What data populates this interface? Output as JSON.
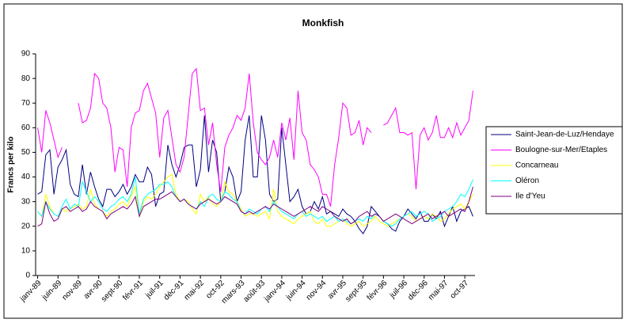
{
  "chart_data": {
    "type": "line",
    "title": "Monkfish",
    "y_label": "Francs per kilo",
    "categories": [
      "janv-89",
      null,
      null,
      null,
      null,
      "juin-89",
      null,
      null,
      null,
      null,
      "nov-89",
      null,
      null,
      null,
      null,
      "avr-90",
      null,
      null,
      null,
      null,
      "sept-90",
      null,
      null,
      null,
      null,
      "févr-91",
      null,
      null,
      null,
      null,
      "juil-91",
      null,
      null,
      null,
      null,
      "déc-91",
      null,
      null,
      null,
      null,
      "mai-92",
      null,
      null,
      null,
      null,
      "oct-92",
      null,
      null,
      null,
      null,
      "mars-93",
      null,
      null,
      null,
      null,
      "août-93",
      null,
      null,
      null,
      null,
      "janv-94",
      null,
      null,
      null,
      null,
      "juin-94",
      null,
      null,
      null,
      null,
      "nov-94",
      null,
      null,
      null,
      null,
      "avr-95",
      null,
      null,
      null,
      null,
      "sept-95",
      null,
      null,
      null,
      null,
      "févr-96",
      null,
      null,
      null,
      null,
      "juil-96",
      null,
      null,
      null,
      null,
      "déc-96",
      null,
      null,
      null,
      null,
      "mai-97",
      null,
      null,
      null,
      null,
      "oct-97",
      null,
      null
    ],
    "series": [
      {
        "name": "Saint-Jean-de-Luz/Hendaye",
        "color": "#000080",
        "values": [
          33,
          34,
          49,
          51,
          33,
          44,
          47,
          51,
          37,
          33,
          32,
          45,
          33,
          42,
          36,
          31,
          28,
          35,
          35,
          32,
          34,
          37,
          33,
          36,
          41,
          38,
          38,
          44,
          41,
          28,
          33,
          34,
          53,
          45,
          40,
          45,
          52,
          53,
          53,
          36,
          43,
          65,
          42,
          55,
          50,
          30,
          34,
          44,
          40,
          30,
          34,
          55,
          65,
          40,
          40,
          65,
          55,
          33,
          30,
          31,
          60,
          45,
          30,
          32,
          35,
          28,
          25,
          26,
          30,
          27,
          32,
          25,
          26,
          25,
          24,
          27,
          25,
          24,
          22,
          19,
          17,
          20,
          28,
          26,
          24,
          22,
          21,
          19,
          18,
          22,
          24,
          27,
          25,
          23,
          26,
          22,
          22,
          25,
          23,
          26,
          20,
          24,
          28,
          22,
          26,
          27,
          28,
          24
        ]
      },
      {
        "name": "Boulogne-sur-Mer/Etaples",
        "color": "#ff00ff",
        "values": [
          60,
          50,
          67,
          62,
          55,
          48,
          52,
          null,
          null,
          null,
          70,
          62,
          63,
          68,
          82,
          80,
          70,
          68,
          60,
          42,
          52,
          51,
          36,
          60,
          66,
          67,
          75,
          78,
          72,
          66,
          48,
          64,
          67,
          56,
          45,
          42,
          48,
          65,
          82,
          84,
          67,
          68,
          53,
          62,
          45,
          34,
          52,
          57,
          60,
          65,
          63,
          68,
          82,
          62,
          50,
          47,
          45,
          48,
          55,
          48,
          62,
          55,
          64,
          47,
          75,
          58,
          55,
          45,
          43,
          40,
          33,
          33,
          28,
          45,
          56,
          70,
          68,
          57,
          58,
          63,
          53,
          60,
          58,
          null,
          null,
          61,
          62,
          65,
          68,
          58,
          58,
          57,
          58,
          35,
          57,
          60,
          55,
          58,
          65,
          56,
          56,
          60,
          56,
          62,
          57,
          60,
          63,
          75
        ]
      },
      {
        "name": "Concarneau",
        "color": "#ffff00",
        "values": [
          26,
          24,
          33,
          28,
          25,
          24,
          27,
          26,
          27,
          28,
          29,
          27,
          28,
          35,
          29,
          27,
          26,
          24,
          26,
          27,
          29,
          30,
          28,
          32,
          36,
          24,
          30,
          32,
          31,
          33,
          36,
          38,
          40,
          41,
          33,
          30,
          31,
          30,
          27,
          25,
          33,
          30,
          32,
          29,
          28,
          30,
          38,
          34,
          33,
          30,
          27,
          24,
          25,
          25,
          24,
          25,
          26,
          23,
          35,
          26,
          24,
          23,
          22,
          21,
          23,
          24,
          25,
          26,
          22,
          21,
          23,
          20,
          20,
          21,
          22,
          23,
          21,
          20,
          21,
          22,
          20,
          21,
          22,
          24,
          22,
          21,
          20,
          21,
          22,
          23,
          24,
          25,
          24,
          22,
          23,
          24,
          23,
          25,
          24,
          22,
          23,
          25,
          27,
          28,
          29,
          27,
          30,
          33
        ]
      },
      {
        "name": "Oléron",
        "color": "#00ffff",
        "values": [
          26,
          24,
          30,
          27,
          25,
          24,
          28,
          31,
          27,
          29,
          28,
          38,
          34,
          30,
          32,
          30,
          27,
          26,
          28,
          29,
          31,
          32,
          30,
          33,
          40,
          25,
          31,
          33,
          34,
          35,
          37,
          37,
          38,
          36,
          32,
          30,
          31,
          29,
          28,
          27,
          30,
          28,
          32,
          33,
          31,
          30,
          34,
          33,
          31,
          30,
          26,
          25,
          27,
          26,
          25,
          27,
          28,
          26,
          30,
          28,
          26,
          25,
          24,
          23,
          25,
          26,
          24,
          25,
          24,
          23,
          24,
          22,
          23,
          24,
          22,
          23,
          22,
          21,
          22,
          23,
          22,
          24,
          23,
          25,
          24,
          22,
          21,
          20,
          21,
          23,
          24,
          25,
          26,
          24,
          25,
          26,
          25,
          22,
          23,
          24,
          26,
          27,
          28,
          30,
          33,
          32,
          35,
          39
        ]
      },
      {
        "name": "Ile d'Yeu",
        "color": "#800080",
        "values": [
          20,
          21,
          30,
          25,
          22,
          23,
          27,
          28,
          26,
          27,
          28,
          26,
          27,
          30,
          28,
          27,
          26,
          23,
          25,
          26,
          27,
          28,
          27,
          29,
          32,
          24,
          28,
          29,
          30,
          31,
          31,
          32,
          33,
          34,
          32,
          30,
          31,
          29,
          28,
          27,
          29,
          30,
          31,
          30,
          29,
          30,
          32,
          31,
          30,
          29,
          26,
          25,
          26,
          25,
          26,
          27,
          28,
          27,
          29,
          28,
          27,
          26,
          25,
          24,
          25,
          26,
          27,
          28,
          27,
          26,
          28,
          27,
          26,
          24,
          23,
          22,
          23,
          21,
          22,
          24,
          25,
          26,
          24,
          25,
          24,
          22,
          23,
          24,
          25,
          24,
          23,
          22,
          21,
          22,
          23,
          24,
          25,
          23,
          24,
          25,
          26,
          24,
          25,
          26,
          27,
          26,
          30,
          36
        ]
      }
    ],
    "ylim": [
      0,
      90
    ],
    "yticks": [
      0,
      10,
      20,
      30,
      40,
      50,
      60,
      70,
      80,
      90
    ],
    "grid": false,
    "legend": "right"
  }
}
